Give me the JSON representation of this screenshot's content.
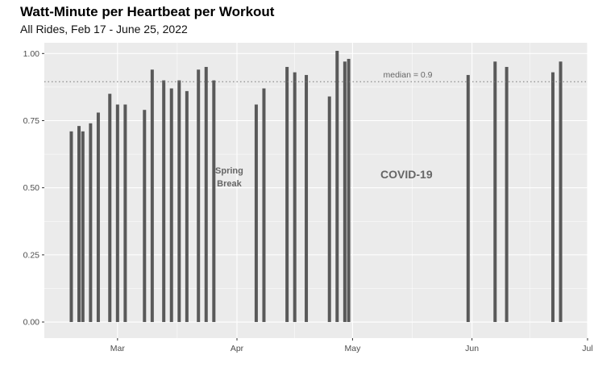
{
  "chart_data": {
    "type": "bar",
    "title": "Watt-Minute per Heartbeat per Workout",
    "subtitle": "All Rides, Feb 17 - June 25, 2022",
    "xlabel": "",
    "ylabel": "",
    "x_axis": {
      "type": "date",
      "range": [
        "2022-02-10",
        "2022-07-01"
      ],
      "tick_labels": [
        {
          "date": "2022-03-01",
          "label": "Mar"
        },
        {
          "date": "2022-04-01",
          "label": "Apr"
        },
        {
          "date": "2022-05-01",
          "label": "May"
        },
        {
          "date": "2022-06-01",
          "label": "Jun"
        },
        {
          "date": "2022-07-01",
          "label": "Jul"
        }
      ]
    },
    "y_axis": {
      "range": [
        -0.06,
        1.04
      ],
      "tick_labels": [
        {
          "value": 0.0,
          "label": "0.00"
        },
        {
          "value": 0.25,
          "label": "0.25"
        },
        {
          "value": 0.5,
          "label": "0.50"
        },
        {
          "value": 0.75,
          "label": "0.75"
        },
        {
          "value": 1.0,
          "label": "1.00"
        }
      ]
    },
    "grid": true,
    "points": [
      {
        "date": "2022-02-17",
        "value": 0.71
      },
      {
        "date": "2022-02-19",
        "value": 0.73
      },
      {
        "date": "2022-02-20",
        "value": 0.71
      },
      {
        "date": "2022-02-22",
        "value": 0.74
      },
      {
        "date": "2022-02-24",
        "value": 0.78
      },
      {
        "date": "2022-02-27",
        "value": 0.85
      },
      {
        "date": "2022-03-01",
        "value": 0.81
      },
      {
        "date": "2022-03-03",
        "value": 0.81
      },
      {
        "date": "2022-03-08",
        "value": 0.79
      },
      {
        "date": "2022-03-10",
        "value": 0.94
      },
      {
        "date": "2022-03-13",
        "value": 0.9
      },
      {
        "date": "2022-03-15",
        "value": 0.87
      },
      {
        "date": "2022-03-17",
        "value": 0.9
      },
      {
        "date": "2022-03-19",
        "value": 0.86
      },
      {
        "date": "2022-03-22",
        "value": 0.94
      },
      {
        "date": "2022-03-24",
        "value": 0.95
      },
      {
        "date": "2022-03-26",
        "value": 0.9
      },
      {
        "date": "2022-04-06",
        "value": 0.81
      },
      {
        "date": "2022-04-08",
        "value": 0.87
      },
      {
        "date": "2022-04-14",
        "value": 0.95
      },
      {
        "date": "2022-04-16",
        "value": 0.93
      },
      {
        "date": "2022-04-19",
        "value": 0.92
      },
      {
        "date": "2022-04-25",
        "value": 0.84
      },
      {
        "date": "2022-04-27",
        "value": 1.01
      },
      {
        "date": "2022-04-29",
        "value": 0.97
      },
      {
        "date": "2022-04-30",
        "value": 0.98
      },
      {
        "date": "2022-05-31",
        "value": 0.92
      },
      {
        "date": "2022-06-07",
        "value": 0.97
      },
      {
        "date": "2022-06-10",
        "value": 0.95
      },
      {
        "date": "2022-06-22",
        "value": 0.93
      },
      {
        "date": "2022-06-24",
        "value": 0.97
      }
    ],
    "median": {
      "value": 0.895,
      "label": "median = 0.9"
    },
    "annotations": [
      {
        "lines": [
          "Spring",
          "Break"
        ],
        "date": "2022-03-30",
        "value": 0.54
      },
      {
        "lines": [
          "COVID-19"
        ],
        "date": "2022-05-15",
        "value": 0.55
      }
    ],
    "colors": {
      "bar": "#595959",
      "panel": "#ebebeb",
      "grid": "#ffffff",
      "annotation": "#666666"
    }
  }
}
